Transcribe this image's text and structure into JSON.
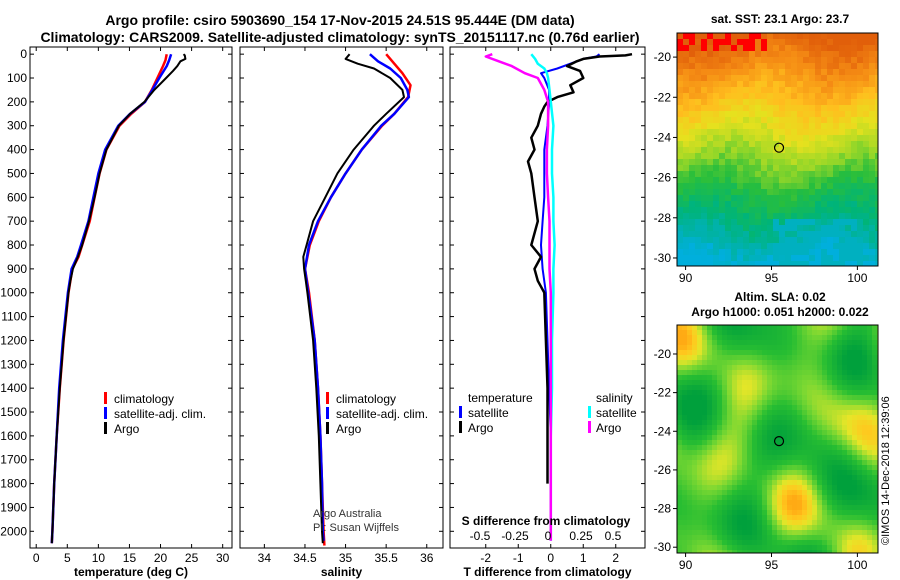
{
  "titles": {
    "line1": "Argo profile: csiro 5903690_154 17-Nov-2015 24.51S 95.444E (DM data)",
    "line2": "Climatology: CARS2009. Satellite-adjusted climatology: synTS_20151117.nc (0.76d earlier)"
  },
  "depth_ticks": [
    "0",
    "100",
    "200",
    "300",
    "400",
    "500",
    "600",
    "700",
    "800",
    "900",
    "1000",
    "1100",
    "1200",
    "1300",
    "1400",
    "1500",
    "1600",
    "1700",
    "1800",
    "1900",
    "2000"
  ],
  "colors": {
    "climatology": "#ff0000",
    "satellite": "#0000ff",
    "argo": "#000000",
    "s_satellite": "#00ffff",
    "s_argo": "#ff00ff"
  },
  "legend_labels": {
    "climatology": "climatology",
    "satellite_adj": "satellite-adj. clim.",
    "argo": "Argo"
  },
  "diff_legend": {
    "temperature_header": "temperature",
    "salinity_header": "salinity",
    "satellite": "satellite",
    "argo": "Argo",
    "s_axis_label": "S difference from climatology",
    "s_ticks": [
      "-0.5",
      "-0.25",
      "0",
      "0.25",
      "0.5"
    ]
  },
  "credit": {
    "line1": "Argo Australia",
    "line2": "PI: Susan Wijffels"
  },
  "panel_titles": {
    "sst": "sat. SST: 23.1 Argo: 23.7",
    "alt1": "Altim. SLA: 0.02",
    "alt2": "Argo h1000: 0.051 h2000: 0.022"
  },
  "map_ticks": {
    "lat": [
      "-20",
      "-22",
      "-24",
      "-26",
      "-28",
      "-30"
    ],
    "lon": [
      "90",
      "95",
      "100"
    ]
  },
  "stamp": "©IMOS 14-Dec-2018 12:39:06",
  "chart_data": [
    {
      "type": "line",
      "title": "",
      "xlabel": "temperature (deg C)",
      "ylabel": "",
      "xlim": [
        -1,
        31.5
      ],
      "ylim": [
        2070,
        -30
      ],
      "x_ticks": [
        "0",
        "5",
        "10",
        "15",
        "20",
        "25",
        "30"
      ],
      "series": [
        {
          "name": "climatology",
          "depth": [
            0,
            25,
            50,
            100,
            150,
            200,
            250,
            300,
            400,
            500,
            600,
            700,
            800,
            850,
            900,
            1000,
            1200,
            1400,
            1600,
            1800,
            2000,
            2050
          ],
          "values": [
            21.0,
            20.8,
            20.4,
            19.5,
            18.6,
            17.5,
            15.3,
            13.4,
            11.3,
            10.2,
            9.4,
            8.6,
            7.4,
            6.8,
            5.8,
            5.2,
            4.4,
            3.8,
            3.3,
            2.9,
            2.6,
            2.5
          ]
        },
        {
          "name": "satellite-adj. clim.",
          "depth": [
            0,
            25,
            50,
            100,
            150,
            200,
            250,
            300,
            400,
            500,
            600,
            700,
            800,
            850,
            900,
            1000,
            1200,
            1400,
            1600,
            1800,
            2000,
            2050
          ],
          "values": [
            21.7,
            21.4,
            21.0,
            19.8,
            18.7,
            17.5,
            15.1,
            13.2,
            11.1,
            10.0,
            9.2,
            8.4,
            7.2,
            6.6,
            5.7,
            5.1,
            4.3,
            3.7,
            3.3,
            2.9,
            2.6,
            2.5
          ]
        },
        {
          "name": "Argo",
          "depth": [
            0,
            5,
            20,
            30,
            50,
            70,
            100,
            150,
            200,
            250,
            300,
            400,
            500,
            600,
            700,
            800,
            850,
            900,
            950,
            1000,
            1200,
            1400,
            1600,
            1800,
            2000,
            2050
          ],
          "values": [
            23.7,
            23.9,
            24.0,
            23.2,
            22.7,
            22.0,
            20.9,
            19.0,
            17.4,
            15.1,
            13.3,
            11.3,
            10.2,
            9.4,
            8.5,
            7.4,
            6.7,
            5.9,
            5.5,
            5.2,
            4.4,
            3.8,
            3.3,
            2.9,
            2.6,
            2.5
          ]
        }
      ]
    },
    {
      "type": "line",
      "title": "",
      "xlabel": "salinity",
      "ylabel": "",
      "xlim": [
        33.7,
        36.2
      ],
      "ylim": [
        2070,
        -30
      ],
      "x_ticks": [
        "34",
        "34.5",
        "35",
        "35.5",
        "36"
      ],
      "series": [
        {
          "name": "climatology",
          "depth": [
            0,
            40,
            80,
            130,
            180,
            250,
            300,
            400,
            500,
            600,
            700,
            800,
            900,
            1000,
            1200,
            1400,
            1600,
            1800,
            2000,
            2060
          ],
          "values": [
            35.5,
            35.6,
            35.7,
            35.8,
            35.77,
            35.6,
            35.45,
            35.2,
            35.0,
            34.82,
            34.67,
            34.56,
            34.5,
            34.55,
            34.62,
            34.66,
            34.69,
            34.71,
            34.73,
            34.74
          ]
        },
        {
          "name": "satellite-adj. clim.",
          "depth": [
            0,
            30,
            60,
            100,
            150,
            180,
            250,
            300,
            400,
            500,
            600,
            700,
            800,
            900,
            1000,
            1200,
            1400,
            1600,
            1800,
            2000,
            2040
          ],
          "values": [
            35.3,
            35.4,
            35.55,
            35.68,
            35.76,
            35.78,
            35.6,
            35.44,
            35.2,
            35.0,
            34.82,
            34.66,
            34.55,
            34.5,
            34.54,
            34.62,
            34.66,
            34.69,
            34.71,
            34.72,
            34.73
          ]
        },
        {
          "name": "Argo",
          "depth": [
            0,
            20,
            40,
            60,
            100,
            150,
            180,
            250,
            300,
            400,
            500,
            600,
            700,
            800,
            850,
            900,
            950,
            1000,
            1200,
            1400,
            1600,
            1800,
            2000,
            2050
          ],
          "values": [
            35.05,
            35.0,
            35.15,
            35.35,
            35.55,
            35.7,
            35.72,
            35.5,
            35.35,
            35.1,
            34.9,
            34.75,
            34.6,
            34.52,
            34.48,
            34.49,
            34.51,
            34.53,
            34.6,
            34.64,
            34.67,
            34.69,
            34.71,
            34.72
          ]
        }
      ]
    },
    {
      "type": "line",
      "title": "",
      "xlabel": "T difference from climatology",
      "ylabel": "",
      "xlim": [
        -3.1,
        2.9
      ],
      "ylim": [
        2070,
        -30
      ],
      "x_ticks": [
        "-2",
        "-1",
        "0",
        "1",
        "2"
      ],
      "series": [
        {
          "name": "T satellite",
          "depth": [
            0,
            10,
            20,
            40,
            60,
            80,
            100,
            150,
            200,
            300,
            400,
            500,
            600,
            700,
            800,
            900,
            1000,
            1200,
            1400,
            1600,
            1800,
            1900
          ],
          "values": [
            1.5,
            1.4,
            1.0,
            0.6,
            0.2,
            -0.3,
            -0.2,
            -0.05,
            -0.05,
            -0.1,
            -0.2,
            -0.2,
            -0.2,
            -0.25,
            -0.3,
            -0.25,
            -0.15,
            -0.1,
            -0.05,
            0,
            0,
            0
          ]
        },
        {
          "name": "T Argo",
          "depth": [
            0,
            5,
            10,
            20,
            30,
            50,
            70,
            100,
            130,
            160,
            180,
            200,
            220,
            250,
            300,
            350,
            400,
            450,
            500,
            600,
            700,
            800,
            850,
            900,
            950,
            1000,
            1200,
            1400,
            1600,
            1800
          ],
          "values": [
            2.5,
            2.3,
            1.5,
            1.0,
            0.8,
            0.5,
            0.9,
            1.0,
            0.6,
            0.7,
            0.2,
            -0.1,
            -0.2,
            -0.3,
            -0.4,
            -0.6,
            -0.5,
            -0.7,
            -0.6,
            -0.5,
            -0.4,
            -0.6,
            -0.3,
            -0.5,
            -0.4,
            -0.2,
            -0.15,
            -0.1,
            -0.1,
            -0.1
          ]
        },
        {
          "name": "S satellite",
          "depth": [
            0,
            20,
            40,
            60,
            80,
            100,
            150,
            200,
            300,
            400,
            500,
            600,
            700,
            800,
            900,
            1000,
            1200,
            1400,
            1600,
            1800,
            2000,
            2040
          ],
          "values": [
            -0.15,
            -0.12,
            -0.1,
            -0.05,
            -0.03,
            -0.02,
            -0.01,
            0,
            0.02,
            0.01,
            0.01,
            0.02,
            0.02,
            0.03,
            0.02,
            0.02,
            0.01,
            0.01,
            0,
            0,
            0,
            0
          ]
        },
        {
          "name": "S Argo",
          "depth": [
            0,
            10,
            30,
            50,
            80,
            100,
            150,
            200,
            300,
            400,
            500,
            600,
            700,
            800,
            900,
            1000,
            1200,
            1400,
            1600,
            1800,
            2000,
            2040
          ],
          "values": [
            -0.45,
            -0.5,
            -0.4,
            -0.3,
            -0.2,
            -0.1,
            -0.05,
            -0.02,
            -0.02,
            -0.03,
            -0.03,
            -0.02,
            -0.01,
            -0.01,
            -0.01,
            0,
            0,
            0,
            0,
            0,
            0,
            0
          ]
        }
      ]
    },
    {
      "type": "heatmap",
      "title": "sat. SST: 23.1 Argo: 23.7",
      "xlabel": "",
      "ylabel": "",
      "xlim": [
        89.5,
        101.2
      ],
      "ylim": [
        -30.4,
        -18.8
      ],
      "x_ticks": [
        "90",
        "95",
        "100"
      ],
      "y_ticks": [
        "-20",
        "-22",
        "-24",
        "-26",
        "-28",
        "-30"
      ],
      "marker": {
        "lon": 95.44,
        "lat": -24.51
      }
    },
    {
      "type": "heatmap",
      "title": "Altim. SLA: 0.02",
      "xlabel": "",
      "ylabel": "",
      "xlim": [
        89.5,
        101.2
      ],
      "ylim": [
        -30.3,
        -18.5
      ],
      "x_ticks": [
        "90",
        "95",
        "100"
      ],
      "y_ticks": [
        "-20",
        "-22",
        "-24",
        "-26",
        "-28",
        "-30"
      ],
      "marker": {
        "lon": 95.44,
        "lat": -24.51
      }
    }
  ]
}
